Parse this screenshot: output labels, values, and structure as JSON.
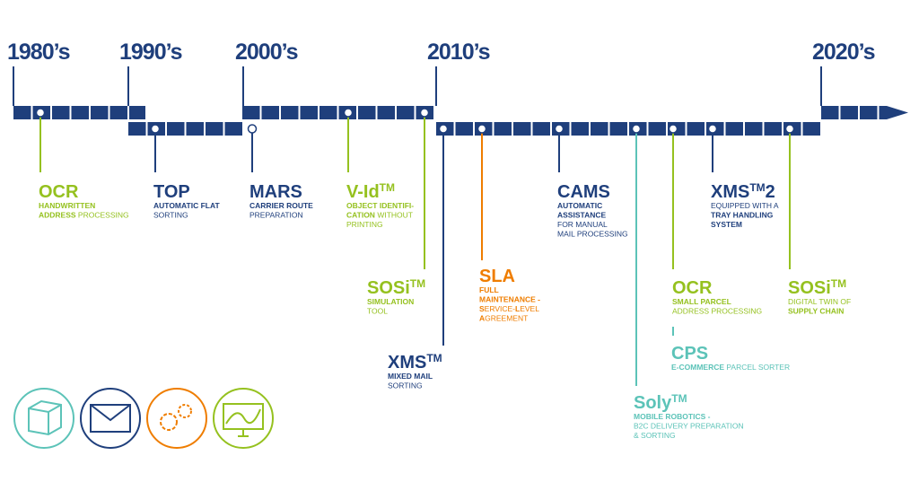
{
  "decades": [
    "1980’s",
    "1990’s",
    "2000’s",
    "2010’s",
    "2020’s"
  ],
  "items": [
    {
      "title": "OCR",
      "color": "#95c11f",
      "description": [
        [
          {
            "bold": "HANDWRITTEN"
          }
        ],
        [
          {
            "bold": "ADDRESS"
          },
          {
            "regular": " PROCESSING"
          }
        ]
      ]
    },
    {
      "title": "TOP",
      "color": "#1f3f7c",
      "description": [
        [
          {
            "bold": "AUTOMATIC FLAT"
          }
        ],
        [
          {
            "regular": "SORTING"
          }
        ]
      ]
    },
    {
      "title": "MARS",
      "color": "#1f3f7c",
      "description": [
        [
          {
            "bold": "CARRIER ROUTE"
          }
        ],
        [
          {
            "regular": "PREPARATION"
          }
        ]
      ]
    },
    {
      "title": "V-Id",
      "sup": "TM",
      "color": "#95c11f",
      "description": [
        [
          {
            "bold": "OBJECT IDENTIFI-"
          }
        ],
        [
          {
            "bold": "CATION"
          },
          {
            "regular": " WITHOUT"
          }
        ],
        [
          {
            "regular": "PRINTING"
          }
        ]
      ]
    },
    {
      "title": "SOSi",
      "sup": "TM",
      "color": "#95c11f",
      "description": [
        [
          {
            "bold": "SIMULATION"
          }
        ],
        [
          {
            "regular": "TOOL"
          }
        ]
      ]
    },
    {
      "title": "XMS",
      "sup": "TM",
      "color": "#1f3f7c",
      "description": [
        [
          {
            "bold": "MIXED MAIL"
          }
        ],
        [
          {
            "regular": "SORTING"
          }
        ]
      ]
    },
    {
      "title": "SLA",
      "color": "#ef7d00",
      "description": [
        [
          {
            "bold": "FULL"
          }
        ],
        [
          {
            "bold": "MAINTENANCE -"
          }
        ],
        [
          {
            "bold": "S"
          },
          {
            "regular": "ERVICE-"
          },
          {
            "bold": "L"
          },
          {
            "regular": "EVEL"
          }
        ],
        [
          {
            "bold": "A"
          },
          {
            "regular": "GREEMENT"
          }
        ]
      ]
    },
    {
      "title": "CAMS",
      "color": "#1f3f7c",
      "description": [
        [
          {
            "bold": "AUTOMATIC"
          }
        ],
        [
          {
            "bold": "ASSISTANCE"
          }
        ],
        [
          {
            "regular": "FOR MANUAL"
          }
        ],
        [
          {
            "regular": "MAIL PROCESSING"
          }
        ]
      ]
    },
    {
      "title": "Soly",
      "sup": "TM",
      "color": "#5cc3b8",
      "description": [
        [
          {
            "bold": "MOBILE ROBOTICS -"
          }
        ],
        [
          {
            "regular": "B2C DELIVERY PREPARATION"
          }
        ],
        [
          {
            "regular": "& SORTING"
          }
        ]
      ]
    },
    {
      "title": "OCR",
      "color": "#95c11f",
      "description": [
        [
          {
            "bold": "SMALL PARCEL"
          }
        ],
        [
          {
            "regular": "ADDRESS PROCESSING"
          }
        ]
      ]
    },
    {
      "title": "CPS",
      "color": "#5cc3b8",
      "description": [
        [
          {
            "bold": "E-COMMERCE"
          },
          {
            "regular": " PARCEL SORTER"
          }
        ]
      ]
    },
    {
      "title": "XMS",
      "sup": "TM",
      "title_end": "2",
      "color": "#1f3f7c",
      "description": [
        [
          {
            "regular": "EQUIPPED WITH A"
          }
        ],
        [
          {
            "bold": "TRAY HANDLING"
          }
        ],
        [
          {
            "bold": "SYSTEM"
          }
        ]
      ]
    },
    {
      "title": "SOSi",
      "sup": "TM",
      "color": "#95c11f",
      "description": [
        [
          {
            "regular": "DIGITAL TWIN OF"
          }
        ],
        [
          {
            "bold": "SUPPLY CHAIN"
          }
        ]
      ]
    }
  ]
}
